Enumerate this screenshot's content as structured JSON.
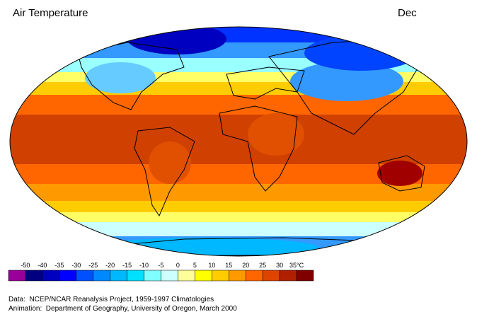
{
  "header": {
    "title": "Air Temperature",
    "month": "Dec"
  },
  "legend": {
    "labels": [
      "-50",
      "-40",
      "-35",
      "-30",
      "-25",
      "-20",
      "-15",
      "-10",
      "-5",
      "0",
      "5",
      "10",
      "15",
      "20",
      "25",
      "30",
      "35°C"
    ],
    "colors": [
      "#990099",
      "#000080",
      "#0000c0",
      "#0000ff",
      "#0050ff",
      "#0088ff",
      "#00b8ff",
      "#00e0ff",
      "#80ffff",
      "#ccffff",
      "#ffff99",
      "#ffff00",
      "#ffcc00",
      "#ff9900",
      "#ff6600",
      "#dd4400",
      "#b02000",
      "#800000"
    ]
  },
  "footer": {
    "data": "Data:  NCEP/NCAR Reanalysis Project, 1959-1997 Climatologies",
    "animation": "Animation:  Department of Geography, University of Oregon, March 2000"
  }
}
